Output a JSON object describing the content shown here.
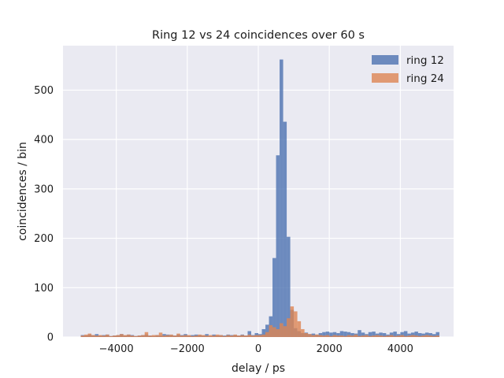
{
  "chart_data": {
    "type": "bar",
    "title": "Ring 12 vs 24 coincidences over 60 s",
    "xlabel": "delay / ps",
    "ylabel": "coincidences / bin",
    "xlim": [
      -5500,
      5500
    ],
    "ylim": [
      0,
      590
    ],
    "xticks": [
      -4000,
      -2000,
      0,
      2000,
      4000
    ],
    "xtick_labels": [
      "−4000",
      "−2000",
      "0",
      "2000",
      "4000"
    ],
    "yticks": [
      0,
      100,
      200,
      300,
      400,
      500
    ],
    "ytick_labels": [
      "0",
      "100",
      "200",
      "300",
      "400",
      "500"
    ],
    "grid": true,
    "legend_position": "top-right",
    "bin_start": -5000,
    "bin_width": 100,
    "series": [
      {
        "name": "ring 12",
        "color": "#4c72b0",
        "opacity": 0.8,
        "values": [
          4,
          3,
          5,
          4,
          6,
          3,
          4,
          5,
          2,
          3,
          4,
          6,
          3,
          5,
          4,
          2,
          3,
          4,
          5,
          3,
          2,
          4,
          3,
          6,
          5,
          4,
          3,
          5,
          4,
          6,
          3,
          4,
          5,
          4,
          3,
          6,
          2,
          5,
          3,
          4,
          3,
          5,
          4,
          4,
          3,
          5,
          3,
          12,
          4,
          8,
          6,
          16,
          25,
          42,
          160,
          368,
          562,
          436,
          203,
          55,
          18,
          12,
          8,
          9,
          6,
          7,
          5,
          8,
          10,
          11,
          9,
          10,
          8,
          12,
          11,
          10,
          8,
          7,
          14,
          9,
          6,
          10,
          11,
          7,
          9,
          8,
          5,
          9,
          11,
          6,
          10,
          12,
          7,
          9,
          11,
          8,
          7,
          9,
          8,
          6,
          10
        ]
      },
      {
        "name": "ring 24",
        "color": "#dd8452",
        "opacity": 0.8,
        "values": [
          3,
          5,
          7,
          4,
          3,
          4,
          3,
          5,
          2,
          3,
          4,
          6,
          4,
          5,
          3,
          2,
          3,
          4,
          10,
          3,
          4,
          4,
          9,
          3,
          4,
          5,
          3,
          7,
          3,
          4,
          4,
          2,
          3,
          5,
          4,
          3,
          4,
          3,
          5,
          4,
          2,
          4,
          3,
          5,
          3,
          4,
          3,
          5,
          3,
          4,
          4,
          5,
          10,
          24,
          20,
          16,
          28,
          22,
          38,
          62,
          52,
          32,
          16,
          8,
          6,
          4,
          5,
          4,
          3,
          4,
          2,
          4,
          3,
          3,
          2,
          4,
          3,
          5,
          2,
          3,
          4,
          2,
          3,
          4,
          3,
          2,
          3,
          4,
          2,
          3,
          4,
          2,
          3,
          4,
          3,
          2,
          3,
          4,
          3,
          2,
          3
        ]
      }
    ]
  }
}
